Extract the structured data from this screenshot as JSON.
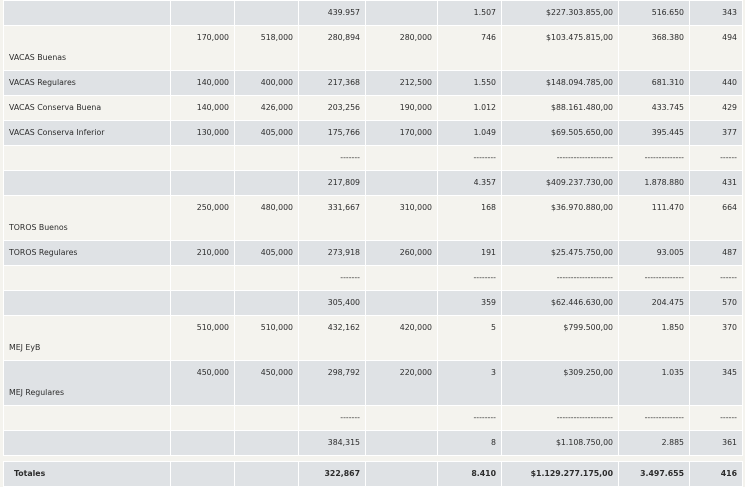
{
  "rows": [
    {
      "style": "dark norm",
      "label": "",
      "c1": "",
      "c2": "",
      "c3": "439.957",
      "c4": "",
      "c5": "1.507",
      "c6": "$227.303.855,00",
      "c7": "516.650",
      "c8": "343"
    },
    {
      "style": "light tall",
      "label": "VACAS Buenas",
      "c1": "170,000",
      "c2": "518,000",
      "c3": "280,894",
      "c4": "280,000",
      "c5": "746",
      "c6": "$103.475.815,00",
      "c7": "368.380",
      "c8": "494"
    },
    {
      "style": "dark norm",
      "label": "VACAS Regulares",
      "c1": "140,000",
      "c2": "400,000",
      "c3": "217,368",
      "c4": "212,500",
      "c5": "1.550",
      "c6": "$148.094.785,00",
      "c7": "681.310",
      "c8": "440"
    },
    {
      "style": "light norm",
      "label": "VACAS Conserva Buena",
      "c1": "140,000",
      "c2": "426,000",
      "c3": "203,256",
      "c4": "190,000",
      "c5": "1.012",
      "c6": "$88.161.480,00",
      "c7": "433.745",
      "c8": "429"
    },
    {
      "style": "dark norm",
      "label": "VACAS Conserva Inferior",
      "c1": "130,000",
      "c2": "405,000",
      "c3": "175,766",
      "c4": "170,000",
      "c5": "1.049",
      "c6": "$69.505.650,00",
      "c7": "395.445",
      "c8": "377"
    },
    {
      "style": "light norm",
      "label": "",
      "c1": "",
      "c2": "",
      "c3": "-------",
      "c4": "",
      "c5": "--------",
      "c6": "--------------------",
      "c7": "--------------",
      "c8": "------"
    },
    {
      "style": "dark norm",
      "label": "",
      "c1": "",
      "c2": "",
      "c3": "217,809",
      "c4": "",
      "c5": "4.357",
      "c6": "$409.237.730,00",
      "c7": "1.878.880",
      "c8": "431"
    },
    {
      "style": "light tall",
      "label": "TOROS Buenos",
      "c1": "250,000",
      "c2": "480,000",
      "c3": "331,667",
      "c4": "310,000",
      "c5": "168",
      "c6": "$36.970.880,00",
      "c7": "111.470",
      "c8": "664"
    },
    {
      "style": "dark norm",
      "label": "TOROS Regulares",
      "c1": "210,000",
      "c2": "405,000",
      "c3": "273,918",
      "c4": "260,000",
      "c5": "191",
      "c6": "$25.475.750,00",
      "c7": "93.005",
      "c8": "487"
    },
    {
      "style": "light norm",
      "label": "",
      "c1": "",
      "c2": "",
      "c3": "-------",
      "c4": "",
      "c5": "--------",
      "c6": "--------------------",
      "c7": "--------------",
      "c8": "------"
    },
    {
      "style": "dark norm",
      "label": "",
      "c1": "",
      "c2": "",
      "c3": "305,400",
      "c4": "",
      "c5": "359",
      "c6": "$62.446.630,00",
      "c7": "204.475",
      "c8": "570"
    },
    {
      "style": "light tall",
      "label": "MEJ EyB",
      "c1": "510,000",
      "c2": "510,000",
      "c3": "432,162",
      "c4": "420,000",
      "c5": "5",
      "c6": "$799.500,00",
      "c7": "1.850",
      "c8": "370"
    },
    {
      "style": "dark tall",
      "label": "MEJ Regulares",
      "c1": "450,000",
      "c2": "450,000",
      "c3": "298,792",
      "c4": "220,000",
      "c5": "3",
      "c6": "$309.250,00",
      "c7": "1.035",
      "c8": "345"
    },
    {
      "style": "light norm",
      "label": "",
      "c1": "",
      "c2": "",
      "c3": "-------",
      "c4": "",
      "c5": "--------",
      "c6": "--------------------",
      "c7": "--------------",
      "c8": "------"
    },
    {
      "style": "dark norm",
      "label": "",
      "c1": "",
      "c2": "",
      "c3": "384,315",
      "c4": "",
      "c5": "8",
      "c6": "$1.108.750,00",
      "c7": "2.885",
      "c8": "361"
    }
  ],
  "totals": {
    "label": "Totales",
    "c1": "",
    "c2": "",
    "c3": "322,867",
    "c4": "",
    "c5": "8.410",
    "c6": "$1.129.277.175,00",
    "c7": "3.497.655",
    "c8": "416"
  }
}
